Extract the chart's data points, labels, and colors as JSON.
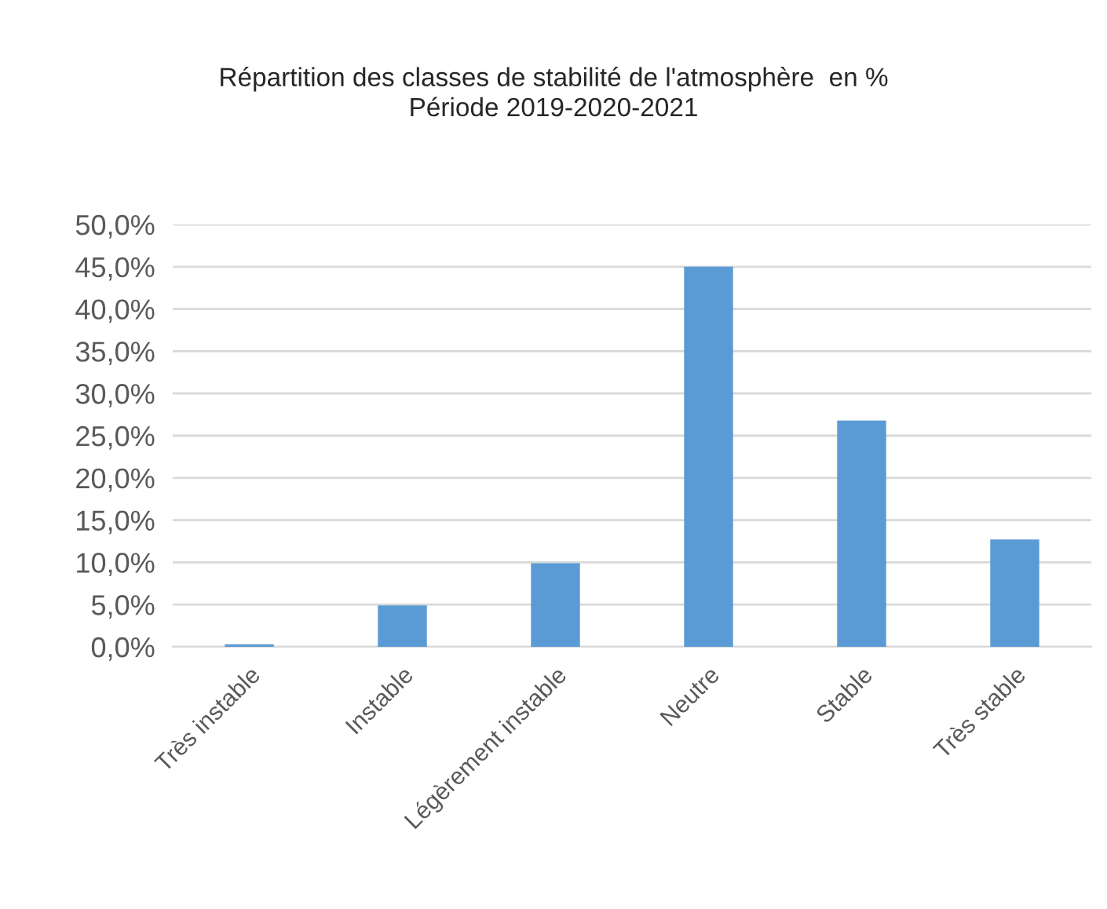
{
  "chart_data": {
    "type": "bar",
    "title": "Répartition des classes de stabilité de l'atmosphère  en %\nPériode 2019-2020-2021",
    "categories": [
      "Très instable",
      "Instable",
      "Légèrement instable",
      "Neutre",
      "Stable",
      "Très stable"
    ],
    "values": [
      0.3,
      4.9,
      9.9,
      45.0,
      26.8,
      12.7
    ],
    "color": "#5b9bd5",
    "ylim": [
      0,
      50
    ],
    "yticks": [
      {
        "value": 0,
        "label": "0,0%"
      },
      {
        "value": 5,
        "label": "5,0%"
      },
      {
        "value": 10,
        "label": "10,0%"
      },
      {
        "value": 15,
        "label": "15,0%"
      },
      {
        "value": 20,
        "label": "20,0%"
      },
      {
        "value": 25,
        "label": "25,0%"
      },
      {
        "value": 30,
        "label": "30,0%"
      },
      {
        "value": 35,
        "label": "35,0%"
      },
      {
        "value": 40,
        "label": "40,0%"
      },
      {
        "value": 45,
        "label": "45,0%"
      },
      {
        "value": 50,
        "label": "50,0%"
      }
    ],
    "grid": "y"
  }
}
